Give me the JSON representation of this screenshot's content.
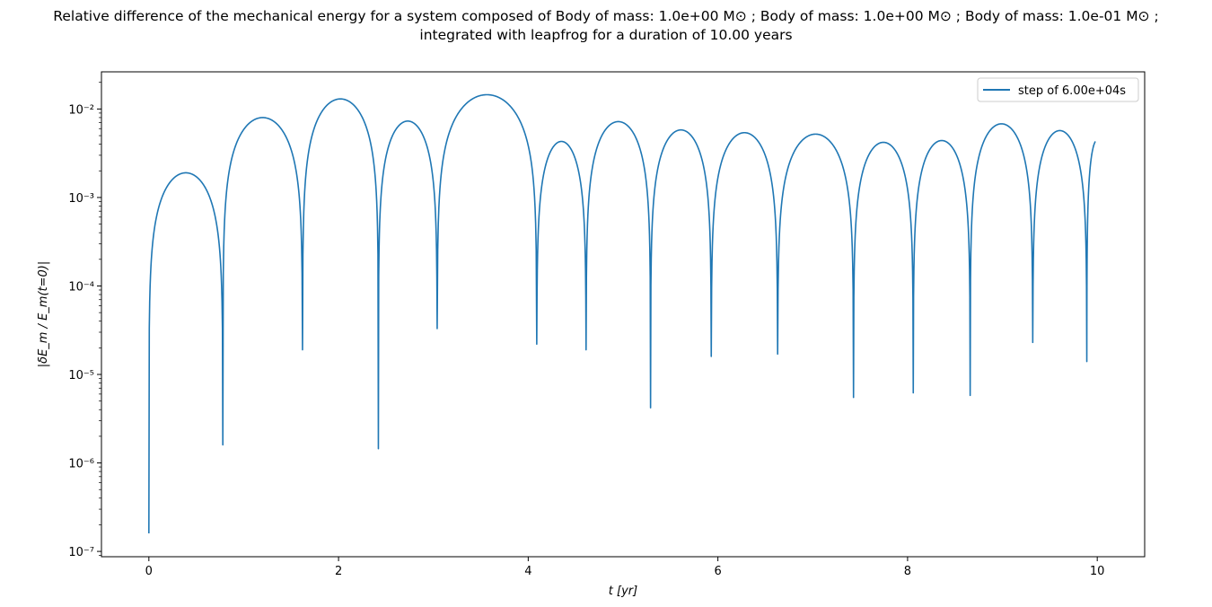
{
  "chart_data": {
    "type": "line",
    "title_line1": "Relative difference of the mechanical energy for a system composed of Body of mass: 1.0e+00 M⊙ ; Body of mass: 1.0e+00 M⊙ ; Body of mass: 1.0e-01 M⊙ ;",
    "title_line2": "integrated with leapfrog for a duration of 10.00 years",
    "xlabel": "t [yr]",
    "ylabel": "|δE_m / E_m(t=0)|",
    "xlim": [
      -0.5,
      10.5
    ],
    "ylim_log10": [
      -7.06,
      -1.58
    ],
    "yscale": "log",
    "xticks": [
      0,
      2,
      4,
      6,
      8,
      10
    ],
    "xtick_labels": [
      "0",
      "2",
      "4",
      "6",
      "8",
      "10"
    ],
    "yticks": [
      1e-07,
      1e-06,
      1e-05,
      0.0001,
      0.001,
      0.01
    ],
    "ytick_labels": [
      "10⁻⁷",
      "10⁻⁶",
      "10⁻⁵",
      "10⁻⁴",
      "10⁻³",
      "10⁻²"
    ],
    "legend_position": "top-right",
    "line_color": "#1f77b4",
    "series": [
      {
        "name": "step of 6.00e+04s",
        "zeros": [
          {
            "t": 0.0,
            "value": 1.6e-07
          },
          {
            "t": 0.78,
            "value": 1.6e-06
          },
          {
            "t": 1.62,
            "value": 1.9e-05
          },
          {
            "t": 2.42,
            "value": 1.45e-06
          },
          {
            "t": 3.04,
            "value": 3.3e-05
          },
          {
            "t": 4.09,
            "value": 2.2e-05
          },
          {
            "t": 4.61,
            "value": 1.9e-05
          },
          {
            "t": 5.29,
            "value": 4.2e-06
          },
          {
            "t": 5.93,
            "value": 1.6e-05
          },
          {
            "t": 6.63,
            "value": 1.7e-05
          },
          {
            "t": 7.43,
            "value": 5.5e-06
          },
          {
            "t": 8.06,
            "value": 6.2e-06
          },
          {
            "t": 8.66,
            "value": 5.8e-06
          },
          {
            "t": 9.32,
            "value": 2.3e-05
          },
          {
            "t": 9.89,
            "value": 1.4e-05
          }
        ],
        "peaks": [
          {
            "t": 0.55,
            "value": 0.0019
          },
          {
            "t": 1.27,
            "value": 0.008
          },
          {
            "t": 2.02,
            "value": 0.013
          },
          {
            "t": 2.72,
            "value": 0.0073
          },
          {
            "t": 3.55,
            "value": 0.0145
          },
          {
            "t": 4.35,
            "value": 0.0043
          },
          {
            "t": 4.95,
            "value": 0.0072
          },
          {
            "t": 5.6,
            "value": 0.0058
          },
          {
            "t": 6.26,
            "value": 0.0054
          },
          {
            "t": 7.02,
            "value": 0.0052
          },
          {
            "t": 7.75,
            "value": 0.0042
          },
          {
            "t": 8.38,
            "value": 0.0044
          },
          {
            "t": 9.01,
            "value": 0.0068
          },
          {
            "t": 9.6,
            "value": 0.0057
          }
        ],
        "end": {
          "t": 9.98,
          "value": 0.0043
        }
      }
    ]
  }
}
